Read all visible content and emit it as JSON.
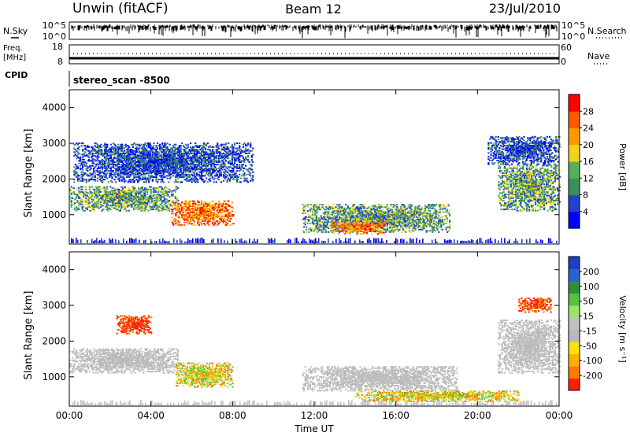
{
  "header": {
    "station": "Unwin (fitACF)",
    "beam": "Beam 12",
    "date": "23/Jul/2010"
  },
  "top_panels": {
    "nsky_label": "N.Sky",
    "nsearch_label": "N.Search",
    "noise_ticks": [
      "10^5",
      "10^0"
    ],
    "freq_label": "Freq.",
    "freq_unit": "[MHz]",
    "freq_ticks": [
      "18",
      "8"
    ],
    "nave_label": "Nave",
    "nave_ticks": [
      "60",
      "0"
    ],
    "cpid_label": "CPID",
    "cpid_value": "stereo_scan -8500"
  },
  "colors": {
    "power": [
      "#0000ff",
      "#2244cc",
      "#3b8f5a",
      "#55b05a",
      "#f2d21a",
      "#ff9a00",
      "#ff5a00",
      "#ff0000"
    ],
    "velocity": [
      "#1f3fc4",
      "#2c62d4",
      "#2f8f3f",
      "#55c23b",
      "#9de06b",
      "#c0c0c0",
      "#b9b9b9",
      "#ffe000",
      "#ffb000",
      "#ff7a00",
      "#ff2000"
    ]
  },
  "chart_data": [
    {
      "type": "heatmap",
      "title": "",
      "xlabel": "Time UT",
      "ylabel": "Slant Range [km]",
      "ylim": [
        180,
        4500
      ],
      "yticks": [
        1000,
        2000,
        3000,
        4000
      ],
      "xticks": [
        "00:00",
        "04:00",
        "08:00",
        "12:00",
        "16:00",
        "20:00",
        "00:00"
      ],
      "colorbar": {
        "label": "Power [dB]",
        "range": [
          0,
          32
        ],
        "ticks": [
          "4",
          "8",
          "12",
          "16",
          "20",
          "24",
          "28"
        ]
      },
      "regions": [
        {
          "t0": 0.0,
          "t1": 5.3,
          "r0": 1100,
          "r1": 1800,
          "level": "mid"
        },
        {
          "t0": 5.0,
          "t1": 8.0,
          "r0": 700,
          "r1": 1400,
          "level": "high"
        },
        {
          "t0": 11.4,
          "t1": 18.6,
          "r0": 500,
          "r1": 1300,
          "level": "mid"
        },
        {
          "t0": 12.8,
          "t1": 15.4,
          "r0": 450,
          "r1": 800,
          "level": "high"
        },
        {
          "t0": 21.0,
          "t1": 24.0,
          "r0": 1100,
          "r1": 2400,
          "level": "mid"
        },
        {
          "t0": 0.2,
          "t1": 9.0,
          "r0": 1900,
          "r1": 3000,
          "level": "low"
        },
        {
          "t0": 20.5,
          "t1": 24.0,
          "r0": 2400,
          "r1": 3200,
          "level": "low"
        }
      ]
    },
    {
      "type": "heatmap",
      "title": "",
      "xlabel": "Time UT",
      "ylabel": "Slant Range [km]",
      "ylim": [
        180,
        4500
      ],
      "yticks": [
        1000,
        2000,
        3000,
        4000
      ],
      "xticks": [
        "00:00",
        "04:00",
        "08:00",
        "12:00",
        "16:00",
        "20:00",
        "00:00"
      ],
      "colorbar": {
        "label": "Velocity [m s⁻¹]",
        "range": [
          -250,
          250
        ],
        "ticks": [
          "200",
          "100",
          "50",
          "15",
          "-15",
          "-50",
          "-100",
          "-200"
        ]
      },
      "regions": [
        {
          "t0": 0.0,
          "t1": 5.3,
          "r0": 1100,
          "r1": 1800,
          "level": "gray"
        },
        {
          "t0": 5.2,
          "t1": 8.0,
          "r0": 700,
          "r1": 1400,
          "level": "orange"
        },
        {
          "t0": 11.4,
          "t1": 19.0,
          "r0": 600,
          "r1": 1300,
          "level": "gray"
        },
        {
          "t0": 2.3,
          "t1": 4.0,
          "r0": 2200,
          "r1": 2700,
          "level": "red"
        },
        {
          "t0": 22.0,
          "t1": 23.6,
          "r0": 2800,
          "r1": 3200,
          "level": "red"
        },
        {
          "t0": 21.0,
          "t1": 24.0,
          "r0": 1100,
          "r1": 2600,
          "level": "gray"
        },
        {
          "t0": 14.0,
          "t1": 22.0,
          "r0": 300,
          "r1": 600,
          "level": "orange"
        }
      ]
    }
  ]
}
